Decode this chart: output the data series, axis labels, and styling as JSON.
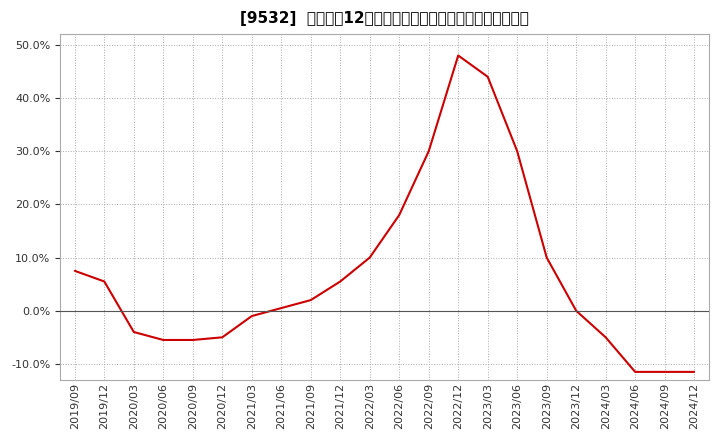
{
  "title": "[9532]  売上高の12か月移動合計の対前年同期増減率の推移",
  "line_color": "#cc0000",
  "background_color": "#ffffff",
  "plot_bg_color": "#ffffff",
  "ylim": [
    -0.13,
    0.52
  ],
  "yticks": [
    -0.1,
    0.0,
    0.1,
    0.2,
    0.3,
    0.4,
    0.5
  ],
  "dates": [
    "2019/09",
    "2019/12",
    "2020/03",
    "2020/06",
    "2020/09",
    "2020/12",
    "2021/03",
    "2021/06",
    "2021/09",
    "2021/12",
    "2022/03",
    "2022/06",
    "2022/09",
    "2022/12",
    "2023/03",
    "2023/06",
    "2023/09",
    "2023/12",
    "2024/03",
    "2024/06",
    "2024/09",
    "2024/12"
  ],
  "values": [
    0.075,
    0.055,
    -0.04,
    -0.055,
    -0.055,
    -0.05,
    -0.01,
    0.005,
    0.02,
    0.055,
    0.1,
    0.18,
    0.3,
    0.48,
    0.44,
    0.3,
    0.1,
    0.0,
    -0.05,
    -0.115,
    -0.115,
    -0.115
  ],
  "grid_color": "#aaaaaa",
  "zero_line_color": "#555555",
  "title_fontsize": 11,
  "tick_fontsize": 8,
  "ylabel_color": "#333333"
}
